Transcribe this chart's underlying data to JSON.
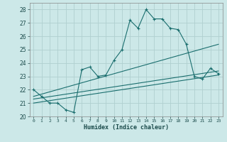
{
  "xlabel": "Humidex (Indice chaleur)",
  "bg_color": "#cce8e8",
  "grid_color": "#b0d0d0",
  "line_color": "#1a6e6e",
  "xlim": [
    -0.5,
    23.5
  ],
  "ylim": [
    20,
    28.5
  ],
  "xticks": [
    0,
    1,
    2,
    3,
    4,
    5,
    6,
    7,
    8,
    9,
    10,
    11,
    12,
    13,
    14,
    15,
    16,
    17,
    18,
    19,
    20,
    21,
    22,
    23
  ],
  "yticks": [
    20,
    21,
    22,
    23,
    24,
    25,
    26,
    27,
    28
  ],
  "series1_x": [
    0,
    1,
    2,
    3,
    4,
    5,
    6,
    7,
    8,
    9,
    10,
    11,
    12,
    13,
    14,
    15,
    16,
    17,
    18,
    19,
    20,
    21,
    22,
    23
  ],
  "series1_y": [
    22.0,
    21.5,
    21.0,
    21.0,
    20.5,
    20.3,
    23.5,
    23.7,
    23.0,
    23.1,
    24.2,
    25.0,
    27.2,
    26.6,
    28.0,
    27.3,
    27.3,
    26.6,
    26.5,
    25.4,
    23.0,
    22.8,
    23.6,
    23.2
  ],
  "series2_x": [
    0,
    23
  ],
  "series2_y": [
    21.5,
    25.4
  ],
  "series3_x": [
    0,
    23
  ],
  "series3_y": [
    21.3,
    23.4
  ],
  "series4_x": [
    0,
    23
  ],
  "series4_y": [
    21.0,
    23.1
  ]
}
